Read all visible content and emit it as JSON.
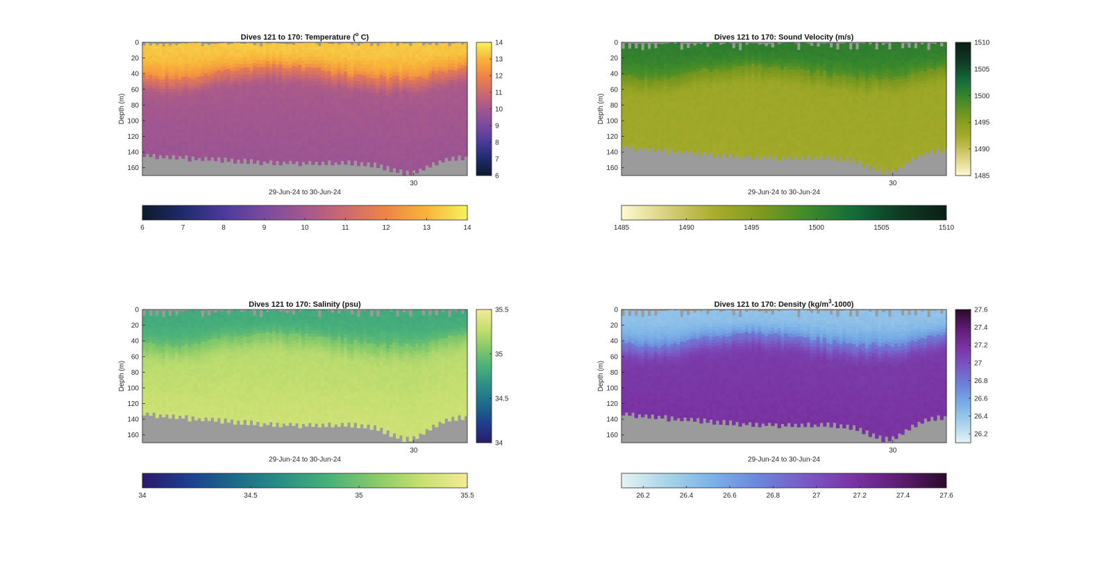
{
  "chart_data": [
    {
      "type": "heatmap",
      "title_main": "Dives 121 to 170: Temperature (",
      "title_sup": "o",
      "title_tail": " C)",
      "xlabel": "29-Jun-24 to 30-Jun-24",
      "ylabel": "Depth (m)",
      "x_tick_labels": [
        "30"
      ],
      "x_tick_positions": [
        0.835
      ],
      "y_ticks": [
        0,
        20,
        40,
        60,
        80,
        100,
        120,
        140,
        160
      ],
      "ylim": [
        0,
        170
      ],
      "clim": [
        6,
        14
      ],
      "colorbar_side_ticks": [
        "6",
        "7",
        "8",
        "9",
        "10",
        "11",
        "12",
        "13",
        "14"
      ],
      "colorbar_bottom_ticks": [
        "6",
        "7",
        "8",
        "9",
        "10",
        "11",
        "12",
        "13",
        "14"
      ],
      "colormap": [
        "#0d1b2a",
        "#1f2a6b",
        "#4b3a9a",
        "#7a4a9e",
        "#a3578f",
        "#cc6a6e",
        "#ef8446",
        "#f8b43a",
        "#f5f35a"
      ],
      "profile": {
        "surface": 13.3,
        "mixed_depth": 35,
        "mid": 10.2,
        "deep": 9.8
      },
      "top_gap_max_m": 5,
      "bottom_depth_min_m": 138,
      "bottom_depth_max_m": 168
    },
    {
      "type": "heatmap",
      "title_main": "Dives 121 to 170: Sound Velocity (m/s)",
      "title_sup": "",
      "title_tail": "",
      "xlabel": "29-Jun-24 to 30-Jun-24",
      "ylabel": "Depth (m)",
      "x_tick_labels": [
        "30"
      ],
      "x_tick_positions": [
        0.835
      ],
      "y_ticks": [
        0,
        20,
        40,
        60,
        80,
        100,
        120,
        140,
        160
      ],
      "ylim": [
        0,
        170
      ],
      "clim": [
        1485,
        1510
      ],
      "colorbar_side_ticks": [
        "1485",
        "1490",
        "1495",
        "1500",
        "1505",
        "1510"
      ],
      "colorbar_bottom_ticks": [
        "1485",
        "1490",
        "1495",
        "1500",
        "1505",
        "1510"
      ],
      "colormap": [
        "#fdf9d2",
        "#d8cf7a",
        "#a9ac2c",
        "#7f9a1e",
        "#3f8a2a",
        "#146b3a",
        "#0e3b24",
        "#0b1e14"
      ],
      "profile": {
        "surface": 1500.5,
        "mixed_depth": 35,
        "mid": 1493.2,
        "deep": 1492.8
      },
      "top_gap_max_m": 10,
      "bottom_depth_min_m": 125,
      "bottom_depth_max_m": 168
    },
    {
      "type": "heatmap",
      "title_main": "Dives 121 to 170: Salinity (psu)",
      "title_sup": "",
      "title_tail": "",
      "xlabel": "29-Jun-24 to 30-Jun-24",
      "ylabel": "Depth (m)",
      "x_tick_labels": [
        "30"
      ],
      "x_tick_positions": [
        0.835
      ],
      "y_ticks": [
        0,
        20,
        40,
        60,
        80,
        100,
        120,
        140,
        160
      ],
      "ylim": [
        0,
        170
      ],
      "clim": [
        34,
        35.5
      ],
      "colorbar_side_ticks": [
        "34",
        "34.5",
        "35",
        "35.5"
      ],
      "colorbar_bottom_ticks": [
        "34",
        "34.5",
        "35",
        "35.5"
      ],
      "colormap": [
        "#2a1a6b",
        "#1d3f8c",
        "#1d6a8a",
        "#2b8e86",
        "#49b07a",
        "#86c96a",
        "#c6df70",
        "#f3ea9a"
      ],
      "profile": {
        "surface": 34.82,
        "mixed_depth": 35,
        "mid": 35.22,
        "deep": 35.32
      },
      "top_gap_max_m": 10,
      "bottom_depth_min_m": 125,
      "bottom_depth_max_m": 168
    },
    {
      "type": "heatmap",
      "title_main": "Dives 121 to 170: Density (kg/m",
      "title_sup": "3",
      "title_tail": "-1000)",
      "xlabel": "29-Jun-24 to 30-Jun-24",
      "ylabel": "Depth (m)",
      "x_tick_labels": [
        "30"
      ],
      "x_tick_positions": [
        0.835
      ],
      "y_ticks": [
        0,
        20,
        40,
        60,
        80,
        100,
        120,
        140,
        160
      ],
      "ylim": [
        0,
        170
      ],
      "clim": [
        26.1,
        27.6
      ],
      "colorbar_side_ticks": [
        "26.2",
        "26.4",
        "26.6",
        "26.8",
        "27",
        "27.2",
        "27.4",
        "27.6"
      ],
      "colorbar_bottom_ticks": [
        "26.2",
        "26.4",
        "26.6",
        "26.8",
        "27",
        "27.2",
        "27.4",
        "27.6"
      ],
      "colormap": [
        "#e6f2f3",
        "#a8d3ea",
        "#79b0e6",
        "#6b84d9",
        "#7a58c4",
        "#7a34a3",
        "#5e1c73",
        "#2a0a2a"
      ],
      "profile": {
        "surface": 26.42,
        "mixed_depth": 35,
        "mid": 27.12,
        "deep": 27.18
      },
      "top_gap_max_m": 10,
      "bottom_depth_min_m": 125,
      "bottom_depth_max_m": 168
    }
  ]
}
